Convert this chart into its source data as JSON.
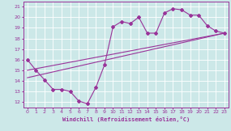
{
  "xlabel": "Windchill (Refroidissement éolien,°C)",
  "bg_color": "#cce8e8",
  "line_color": "#993399",
  "grid_color": "#ffffff",
  "xlim": [
    -0.5,
    23.5
  ],
  "ylim": [
    11.5,
    21.5
  ],
  "xticks": [
    0,
    1,
    2,
    3,
    4,
    5,
    6,
    7,
    8,
    9,
    10,
    11,
    12,
    13,
    14,
    15,
    16,
    17,
    18,
    19,
    20,
    21,
    22,
    23
  ],
  "yticks": [
    12,
    13,
    14,
    15,
    16,
    17,
    18,
    19,
    20,
    21
  ],
  "line1_x": [
    0,
    1,
    2,
    3,
    4,
    5,
    6,
    7,
    8,
    9,
    10,
    11,
    12,
    13,
    14,
    15,
    16,
    17,
    18,
    19,
    20,
    21,
    22,
    23
  ],
  "line1_y": [
    16.0,
    15.0,
    14.1,
    13.2,
    13.2,
    13.0,
    12.1,
    11.85,
    13.4,
    15.5,
    19.1,
    19.6,
    19.4,
    20.0,
    18.5,
    18.5,
    20.4,
    20.8,
    20.7,
    20.2,
    20.2,
    19.2,
    18.7,
    18.5
  ],
  "line2_x": [
    0,
    23
  ],
  "line2_y": [
    15.0,
    18.5
  ],
  "line3_x": [
    0,
    23
  ],
  "line3_y": [
    14.3,
    18.5
  ]
}
